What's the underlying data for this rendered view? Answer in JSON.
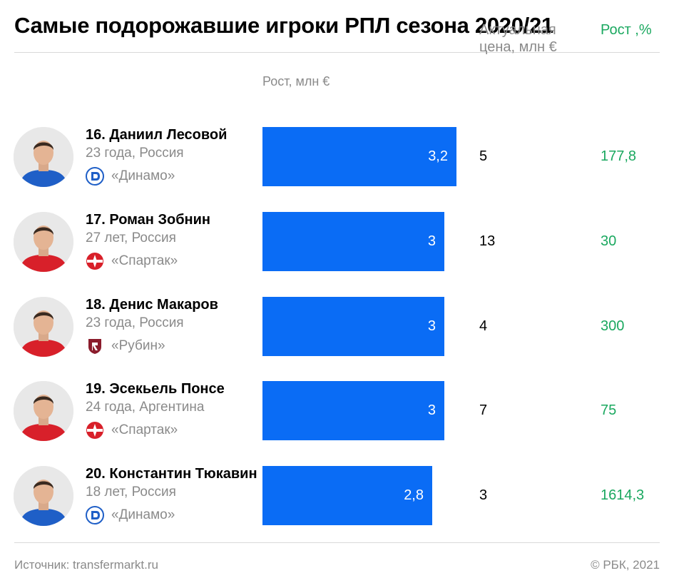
{
  "title": "Самые подорожавшие игроки РПЛ сезона 2020/21",
  "columns": {
    "bars": "Рост, млн €",
    "price_line1": "Актуальная",
    "price_line2": "цена, млн €",
    "pct": "Рост ,%"
  },
  "colors": {
    "bar": "#0a6cf5",
    "growth_text": "#1aa85f",
    "muted_text": "#8a8a8a"
  },
  "players": [
    {
      "name": "16. Даниил Лесовой",
      "meta": "23 года, Россия",
      "club": "«Динамо»",
      "club_icon": "dinamo-logo-icon",
      "kit": "blue",
      "growth": "3,2",
      "price": "5",
      "pct": "177,8"
    },
    {
      "name": "17. Роман Зобнин",
      "meta": "27 лет, Россия",
      "club": "«Спартак»",
      "club_icon": "spartak-logo-icon",
      "kit": "red",
      "growth": "3",
      "price": "13",
      "pct": "30"
    },
    {
      "name": "18. Денис Макаров",
      "meta": "23 года, Россия",
      "club": "«Рубин»",
      "club_icon": "rubin-logo-icon",
      "kit": "red",
      "growth": "3",
      "price": "4",
      "pct": "300"
    },
    {
      "name": "19. Эсекьель Понсе",
      "meta": "24 года, Аргентина",
      "club": "«Спартак»",
      "club_icon": "spartak-logo-icon",
      "kit": "red",
      "growth": "3",
      "price": "7",
      "pct": "75"
    },
    {
      "name": "20. Константин Тюкавин",
      "meta": "18 лет, Россия",
      "club": "«Динамо»",
      "club_icon": "dinamo-logo-icon",
      "kit": "blue",
      "growth": "2,8",
      "price": "3",
      "pct": "1614,3"
    }
  ],
  "chart_data": {
    "type": "bar",
    "orientation": "horizontal",
    "title": "Самые подорожавшие игроки РПЛ сезона 2020/21",
    "categories": [
      "16. Даниил Лесовой",
      "17. Роман Зобнин",
      "18. Денис Макаров",
      "19. Эсекьель Понсе",
      "20. Константин Тюкавин"
    ],
    "series": [
      {
        "name": "Рост, млн €",
        "values": [
          3.2,
          3,
          3,
          3,
          2.8
        ]
      }
    ],
    "table_columns": [
      {
        "name": "Актуальная цена, млн €",
        "values": [
          5,
          13,
          4,
          7,
          3
        ]
      },
      {
        "name": "Рост ,%",
        "values": [
          177.8,
          30,
          300,
          75,
          1614.3
        ]
      }
    ],
    "xlim": [
      0,
      3.2
    ],
    "grid": false,
    "legend": "none"
  },
  "footer": {
    "source": "Источник: transfermarkt.ru",
    "copyright": "© РБК, 2021"
  }
}
